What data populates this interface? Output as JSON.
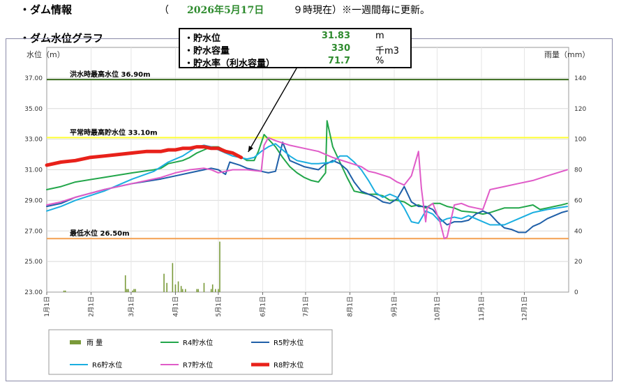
{
  "header": {
    "title": "・ダム情報",
    "date_open": "（",
    "date": "2026年5月17日",
    "time_note": "９時現在）※一週間毎に更新。"
  },
  "section": {
    "title": "・ダム水位グラフ"
  },
  "info": {
    "rows": [
      {
        "label": "・貯水位",
        "value": "31.83",
        "unit": "m"
      },
      {
        "label": "・貯水容量",
        "value": "330",
        "unit": "千m3"
      },
      {
        "label": "・貯水率（利水容量）",
        "value": "71.7",
        "unit": "%"
      }
    ]
  },
  "chart_data": {
    "type": "line",
    "ylabel": "水位（m）",
    "y2label": "雨量（mm）",
    "ylim": [
      23,
      39
    ],
    "y2lim": [
      0,
      160
    ],
    "yticks": [
      "23.00",
      "25.00",
      "27.00",
      "29.00",
      "31.00",
      "33.00",
      "35.00",
      "37.00"
    ],
    "y2ticks": [
      "0",
      "20",
      "40",
      "60",
      "80",
      "100",
      "120",
      "140"
    ],
    "months": [
      "1月1日",
      "2月1日",
      "3月1日",
      "4月1日",
      "5月1日",
      "6月1日",
      "7月1日",
      "8月1日",
      "9月1日",
      "10月1日",
      "11月1日",
      "12月1日"
    ],
    "ref_lines": [
      {
        "label": "洪水時最高水位 36.90m",
        "value": 36.9,
        "color": "#3a6b1e"
      },
      {
        "label": "平常時最高貯水位 33.10m",
        "value": 33.1,
        "color": "#ffff33"
      },
      {
        "label": "最低水位 26.50m",
        "value": 26.5,
        "color": "#f4a050"
      }
    ],
    "rain": {
      "name": "雨 量",
      "color": "#7a9a3a",
      "days": [
        12,
        13,
        55,
        56,
        57,
        60,
        61,
        62,
        82,
        84,
        88,
        90,
        92,
        94,
        95,
        97,
        105,
        106,
        110,
        115,
        116,
        118,
        120,
        121
      ],
      "mm": [
        1,
        1,
        11,
        2,
        2,
        1,
        2,
        2,
        12,
        6,
        19,
        5,
        7,
        4,
        2,
        2,
        2,
        2,
        6,
        2,
        5,
        2,
        2,
        33
      ]
    },
    "series": [
      {
        "name": "R4貯水位",
        "color": "#22a64a",
        "width": 2,
        "x": [
          0,
          10,
          20,
          40,
          60,
          75,
          80,
          85,
          95,
          100,
          105,
          110,
          115,
          120,
          128,
          135,
          140,
          145,
          148,
          152,
          155,
          160,
          165,
          170,
          175,
          180,
          185,
          190,
          195,
          196,
          200,
          205,
          210,
          215,
          220,
          225,
          230,
          235,
          240,
          245,
          250,
          255,
          260,
          265,
          270,
          275,
          280,
          285,
          290,
          300,
          305,
          310,
          320,
          330,
          340,
          345,
          350,
          355,
          360,
          364
        ],
        "y": [
          29.7,
          29.9,
          30.2,
          30.5,
          30.8,
          31.0,
          31.1,
          31.4,
          31.6,
          31.8,
          32.1,
          32.3,
          32.5,
          32.5,
          32.1,
          31.9,
          31.6,
          31.6,
          32.2,
          33.3,
          33.0,
          32.5,
          31.8,
          31.2,
          30.8,
          30.5,
          30.3,
          30.2,
          30.8,
          34.2,
          32.5,
          31.5,
          30.5,
          29.6,
          29.5,
          29.4,
          29.4,
          29.3,
          29.0,
          29.0,
          28.9,
          28.6,
          28.7,
          28.5,
          28.8,
          28.8,
          28.6,
          28.5,
          28.3,
          28.2,
          28.1,
          28.2,
          28.5,
          28.5,
          28.7,
          28.4,
          28.5,
          28.6,
          28.7,
          28.8
        ]
      },
      {
        "name": "R5貯水位",
        "color": "#1f5fa8",
        "width": 2,
        "x": [
          0,
          10,
          20,
          40,
          60,
          80,
          100,
          110,
          115,
          120,
          125,
          128,
          135,
          140,
          150,
          155,
          160,
          165,
          170,
          175,
          180,
          190,
          195,
          196,
          200,
          205,
          210,
          215,
          220,
          225,
          230,
          235,
          240,
          245,
          250,
          255,
          260,
          265,
          270,
          275,
          280,
          285,
          290,
          295,
          300,
          305,
          310,
          315,
          320,
          325,
          330,
          335,
          340,
          345,
          350,
          355,
          360,
          364
        ],
        "y": [
          28.6,
          28.8,
          29.2,
          29.7,
          30.1,
          30.4,
          30.8,
          31.0,
          31.1,
          31.0,
          30.7,
          31.5,
          31.3,
          31.1,
          30.9,
          30.8,
          30.9,
          32.8,
          31.6,
          31.4,
          31.2,
          31.0,
          31.4,
          31.4,
          31.6,
          31.4,
          31.0,
          30.2,
          29.6,
          29.4,
          29.2,
          28.9,
          28.8,
          29.1,
          29.9,
          28.9,
          28.6,
          28.6,
          28.4,
          27.8,
          27.4,
          27.6,
          27.6,
          27.7,
          28.1,
          28.3,
          28.1,
          27.6,
          27.2,
          27.1,
          26.9,
          26.9,
          27.3,
          27.5,
          27.8,
          28.0,
          28.2,
          28.3
        ]
      },
      {
        "name": "R6貯水位",
        "color": "#1aaee0",
        "width": 2,
        "x": [
          0,
          10,
          20,
          40,
          60,
          75,
          85,
          95,
          100,
          105,
          110,
          115,
          120,
          125,
          130,
          135,
          140,
          145,
          150,
          155,
          160,
          165,
          170,
          175,
          180,
          185,
          190,
          200,
          205,
          210,
          215,
          220,
          225,
          230,
          235,
          240,
          245,
          250,
          255,
          260,
          265,
          270,
          275,
          280,
          285,
          290,
          295,
          300,
          305,
          310,
          320,
          330,
          340,
          350,
          364
        ],
        "y": [
          28.3,
          28.6,
          29.0,
          29.6,
          30.4,
          30.9,
          31.5,
          31.9,
          32.2,
          32.5,
          32.6,
          32.5,
          32.3,
          32.1,
          31.9,
          31.8,
          31.7,
          31.8,
          32.2,
          32.5,
          32.7,
          32.3,
          31.9,
          31.6,
          31.5,
          31.4,
          31.4,
          31.5,
          31.9,
          31.9,
          31.5,
          31.0,
          30.3,
          29.5,
          29.2,
          29.4,
          29.2,
          28.5,
          27.6,
          27.5,
          28.3,
          28.1,
          27.6,
          27.8,
          27.9,
          27.8,
          28.0,
          27.8,
          27.6,
          27.4,
          27.4,
          27.8,
          28.2,
          28.4,
          28.6
        ]
      },
      {
        "name": "R7貯水位",
        "color": "#e05bc8",
        "width": 2,
        "x": [
          0,
          10,
          20,
          40,
          60,
          80,
          90,
          100,
          110,
          115,
          120,
          125,
          130,
          140,
          150,
          152,
          155,
          160,
          170,
          180,
          190,
          200,
          210,
          220,
          225,
          230,
          240,
          245,
          250,
          255,
          260,
          262,
          264,
          265,
          266,
          270,
          275,
          278,
          280,
          285,
          290,
          295,
          300,
          305,
          310,
          320,
          330,
          340,
          350,
          364
        ],
        "y": [
          28.7,
          28.9,
          29.2,
          29.7,
          30.1,
          30.5,
          30.8,
          31.0,
          31.1,
          31.0,
          30.8,
          30.9,
          31.0,
          31.0,
          30.9,
          32.6,
          33.1,
          32.9,
          32.6,
          32.4,
          32.2,
          31.8,
          31.5,
          31.2,
          30.9,
          30.8,
          30.5,
          30.2,
          30.0,
          30.6,
          32.2,
          29.8,
          28.3,
          27.6,
          28.5,
          28.8,
          27.6,
          26.5,
          26.6,
          28.7,
          28.8,
          28.6,
          28.5,
          28.4,
          29.7,
          29.9,
          30.1,
          30.3,
          30.6,
          31.0
        ]
      },
      {
        "name": "R8貯水位",
        "color": "#e8211a",
        "width": 5,
        "x": [
          0,
          10,
          20,
          30,
          40,
          50,
          60,
          70,
          80,
          85,
          90,
          95,
          100,
          105,
          110,
          115,
          120,
          125,
          130,
          136
        ],
        "y": [
          31.3,
          31.5,
          31.6,
          31.8,
          31.9,
          32.0,
          32.1,
          32.2,
          32.2,
          32.3,
          32.3,
          32.4,
          32.4,
          32.5,
          32.5,
          32.4,
          32.4,
          32.2,
          32.1,
          31.8
        ]
      }
    ],
    "legend_position": "bottom"
  }
}
